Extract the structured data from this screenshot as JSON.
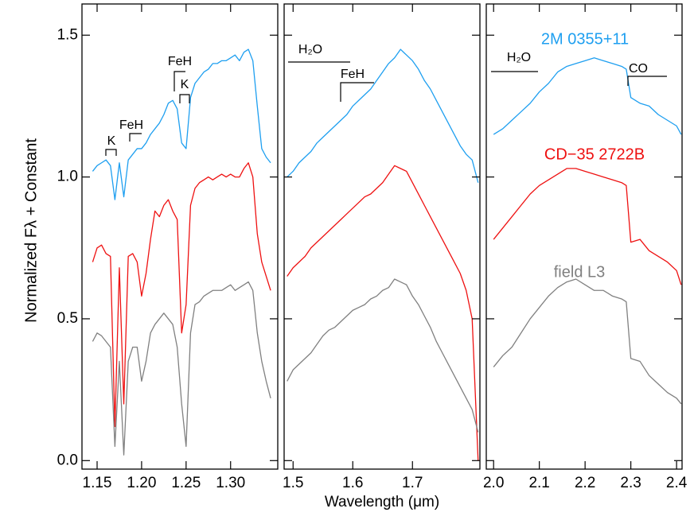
{
  "chart_data": [
    {
      "type": "line",
      "ylabel": "Normalized Fλ + Constant",
      "annotations": [
        "K",
        "FeH",
        "FeH",
        "K"
      ],
      "xlim": [
        1.133,
        1.353
      ],
      "xticks": [
        1.15,
        {
          "value": 1.2,
          "label": "1.20"
        },
        1.25,
        {
          "value": 1.3,
          "label": "1.30"
        }
      ],
      "ylim": [
        -0.03,
        1.61
      ],
      "yticks": [
        {
          "value": 0,
          "label": "0.0"
        },
        0.5,
        {
          "value": 1,
          "label": "1.0"
        },
        1.5
      ],
      "x": [
        1.145,
        1.15,
        1.155,
        1.16,
        1.165,
        1.17,
        1.175,
        1.18,
        1.185,
        1.19,
        1.195,
        1.2,
        1.205,
        1.21,
        1.215,
        1.22,
        1.225,
        1.23,
        1.235,
        1.24,
        1.245,
        1.25,
        1.255,
        1.26,
        1.265,
        1.27,
        1.275,
        1.28,
        1.285,
        1.29,
        1.295,
        1.3,
        1.305,
        1.31,
        1.315,
        1.32,
        1.325,
        1.33,
        1.335,
        1.34,
        1.345
      ],
      "series": [
        {
          "color": "#1e9ff0",
          "values": [
            1.02,
            1.04,
            1.05,
            1.06,
            1.04,
            0.92,
            1.05,
            0.93,
            1.06,
            1.08,
            1.1,
            1.1,
            1.12,
            1.15,
            1.17,
            1.19,
            1.22,
            1.26,
            1.27,
            1.24,
            1.12,
            1.1,
            1.28,
            1.33,
            1.35,
            1.37,
            1.38,
            1.4,
            1.4,
            1.41,
            1.41,
            1.42,
            1.43,
            1.41,
            1.44,
            1.45,
            1.41,
            1.25,
            1.1,
            1.07,
            1.05
          ]
        },
        {
          "color": "#ee1111",
          "values": [
            0.7,
            0.75,
            0.76,
            0.73,
            0.72,
            0.12,
            0.68,
            0.2,
            0.72,
            0.73,
            0.7,
            0.58,
            0.66,
            0.78,
            0.88,
            0.86,
            0.9,
            0.92,
            0.88,
            0.85,
            0.45,
            0.55,
            0.9,
            0.96,
            0.98,
            0.99,
            1.0,
            0.99,
            1.0,
            1.01,
            1.0,
            1.01,
            1.0,
            1.0,
            1.03,
            1.05,
            1.0,
            0.8,
            0.7,
            0.65,
            0.6
          ]
        },
        {
          "color": "#808080",
          "values": [
            0.42,
            0.45,
            0.44,
            0.42,
            0.4,
            0.05,
            0.35,
            0.02,
            0.35,
            0.4,
            0.4,
            0.28,
            0.35,
            0.45,
            0.48,
            0.5,
            0.52,
            0.5,
            0.48,
            0.4,
            0.2,
            0.05,
            0.45,
            0.55,
            0.56,
            0.58,
            0.59,
            0.6,
            0.6,
            0.6,
            0.61,
            0.62,
            0.6,
            0.61,
            0.62,
            0.63,
            0.6,
            0.45,
            0.35,
            0.28,
            0.22
          ]
        }
      ]
    },
    {
      "type": "line",
      "xlabel": "Wavelength (μm)",
      "annotations": [
        "H₂O",
        "FeH"
      ],
      "xlim": [
        1.485,
        1.813
      ],
      "xticks": [
        1.5,
        1.6,
        1.7
      ],
      "ylim": [
        -0.03,
        1.61
      ],
      "x": [
        1.49,
        1.5,
        1.51,
        1.52,
        1.53,
        1.54,
        1.55,
        1.56,
        1.57,
        1.58,
        1.59,
        1.6,
        1.61,
        1.62,
        1.63,
        1.64,
        1.65,
        1.66,
        1.67,
        1.68,
        1.69,
        1.7,
        1.71,
        1.72,
        1.73,
        1.74,
        1.75,
        1.76,
        1.77,
        1.78,
        1.79,
        1.8,
        1.81
      ],
      "series": [
        {
          "color": "#1e9ff0",
          "values": [
            1.0,
            1.02,
            1.05,
            1.07,
            1.09,
            1.12,
            1.14,
            1.16,
            1.18,
            1.2,
            1.22,
            1.25,
            1.27,
            1.29,
            1.31,
            1.34,
            1.37,
            1.4,
            1.42,
            1.45,
            1.43,
            1.41,
            1.38,
            1.34,
            1.31,
            1.27,
            1.23,
            1.19,
            1.15,
            1.11,
            1.08,
            1.06,
            0.98
          ]
        },
        {
          "color": "#ee1111",
          "values": [
            0.65,
            0.68,
            0.7,
            0.72,
            0.75,
            0.77,
            0.79,
            0.81,
            0.83,
            0.85,
            0.87,
            0.89,
            0.91,
            0.93,
            0.94,
            0.96,
            0.98,
            1.01,
            1.04,
            1.03,
            1.02,
            0.98,
            0.94,
            0.9,
            0.86,
            0.82,
            0.78,
            0.74,
            0.7,
            0.66,
            0.6,
            0.5,
            0.0
          ]
        },
        {
          "color": "#808080",
          "values": [
            0.28,
            0.32,
            0.34,
            0.36,
            0.38,
            0.41,
            0.44,
            0.46,
            0.47,
            0.49,
            0.51,
            0.53,
            0.54,
            0.55,
            0.57,
            0.58,
            0.6,
            0.61,
            0.64,
            0.63,
            0.62,
            0.58,
            0.55,
            0.51,
            0.47,
            0.42,
            0.38,
            0.34,
            0.3,
            0.26,
            0.22,
            0.18,
            0.1
          ]
        }
      ]
    },
    {
      "type": "line",
      "annotations": [
        "H₂O",
        "CO"
      ],
      "xlim": [
        1.984,
        2.412
      ],
      "xticks": [
        {
          "value": 2,
          "label": "2.0"
        },
        2.1,
        2.2,
        2.3,
        2.4
      ],
      "ylim": [
        -0.03,
        1.61
      ],
      "x": [
        2.0,
        2.02,
        2.04,
        2.06,
        2.08,
        2.1,
        2.12,
        2.14,
        2.16,
        2.18,
        2.2,
        2.22,
        2.24,
        2.26,
        2.28,
        2.29,
        2.3,
        2.32,
        2.34,
        2.36,
        2.38,
        2.4,
        2.41
      ],
      "series": [
        {
          "name": "2M 0355+11",
          "color": "#1e9ff0",
          "values": [
            1.15,
            1.17,
            1.2,
            1.23,
            1.26,
            1.3,
            1.33,
            1.37,
            1.39,
            1.4,
            1.41,
            1.42,
            1.41,
            1.4,
            1.39,
            1.38,
            1.28,
            1.26,
            1.25,
            1.22,
            1.2,
            1.18,
            1.15
          ]
        },
        {
          "name": "CD−35 2722B",
          "color": "#ee1111",
          "values": [
            0.78,
            0.82,
            0.86,
            0.9,
            0.94,
            0.97,
            0.99,
            1.01,
            1.03,
            1.03,
            1.02,
            1.01,
            1.0,
            0.99,
            0.98,
            0.97,
            0.77,
            0.78,
            0.74,
            0.72,
            0.7,
            0.67,
            0.62
          ]
        },
        {
          "name": "field L3",
          "color": "#808080",
          "values": [
            0.33,
            0.37,
            0.4,
            0.45,
            0.5,
            0.54,
            0.58,
            0.61,
            0.63,
            0.64,
            0.62,
            0.6,
            0.6,
            0.58,
            0.57,
            0.56,
            0.36,
            0.35,
            0.3,
            0.27,
            0.24,
            0.22,
            0.2
          ]
        }
      ]
    }
  ]
}
